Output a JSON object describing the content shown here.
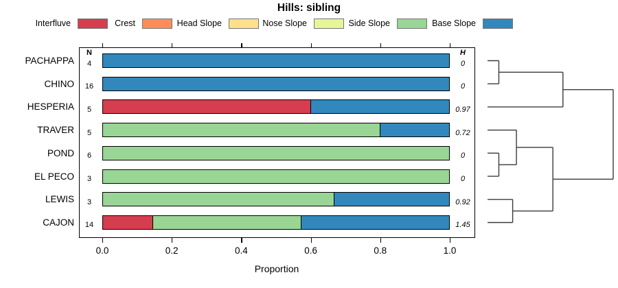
{
  "title": "Hills: sibling",
  "legend": {
    "items": [
      {
        "label": "Interfluve",
        "color": "#d53e4f"
      },
      {
        "label": "Crest",
        "color": "#fc8d59"
      },
      {
        "label": "Head Slope",
        "color": "#fee08b"
      },
      {
        "label": "Nose Slope",
        "color": "#e6f598"
      },
      {
        "label": "Side Slope",
        "color": "#99d594"
      },
      {
        "label": "Base Slope",
        "color": "#3288bd"
      }
    ]
  },
  "columns": {
    "n_header": "N",
    "h_header": "H"
  },
  "axis": {
    "xlabel": "Proportion",
    "tick_labels": [
      "0.0",
      "0.2",
      "0.4",
      "0.6",
      "0.8",
      "1.0"
    ]
  },
  "chart_data": {
    "type": "bar",
    "subtype": "horizontal-stacked-proportion-with-dendrogram",
    "title": "Hills: sibling",
    "xlabel": "Proportion",
    "xlim": [
      0,
      1
    ],
    "x_ticks": [
      0.0,
      0.2,
      0.4,
      0.6,
      0.8,
      1.0
    ],
    "classes": [
      "Interfluve",
      "Crest",
      "Head Slope",
      "Nose Slope",
      "Side Slope",
      "Base Slope"
    ],
    "class_colors": {
      "Interfluve": "#d53e4f",
      "Crest": "#fc8d59",
      "Head Slope": "#fee08b",
      "Nose Slope": "#e6f598",
      "Side Slope": "#99d594",
      "Base Slope": "#3288bd"
    },
    "categories": [
      "PACHAPPA",
      "CHINO",
      "HESPERIA",
      "TRAVER",
      "POND",
      "EL PECO",
      "LEWIS",
      "CAJON"
    ],
    "n_values": [
      4,
      16,
      5,
      5,
      6,
      3,
      3,
      14
    ],
    "h_values": [
      "0",
      "0",
      "0.97",
      "0.72",
      "0",
      "0",
      "0.92",
      "1.45"
    ],
    "rows": [
      {
        "name": "PACHAPPA",
        "n": "4",
        "h": "0",
        "segments": [
          {
            "class": "Base Slope",
            "value": 1.0
          }
        ]
      },
      {
        "name": "CHINO",
        "n": "16",
        "h": "0",
        "segments": [
          {
            "class": "Base Slope",
            "value": 1.0
          }
        ]
      },
      {
        "name": "HESPERIA",
        "n": "5",
        "h": "0.97",
        "segments": [
          {
            "class": "Interfluve",
            "value": 0.6
          },
          {
            "class": "Base Slope",
            "value": 0.4
          }
        ]
      },
      {
        "name": "TRAVER",
        "n": "5",
        "h": "0.72",
        "segments": [
          {
            "class": "Side Slope",
            "value": 0.8
          },
          {
            "class": "Base Slope",
            "value": 0.2
          }
        ]
      },
      {
        "name": "POND",
        "n": "6",
        "h": "0",
        "segments": [
          {
            "class": "Side Slope",
            "value": 1.0
          }
        ]
      },
      {
        "name": "EL PECO",
        "n": "3",
        "h": "0",
        "segments": [
          {
            "class": "Side Slope",
            "value": 1.0
          }
        ]
      },
      {
        "name": "LEWIS",
        "n": "3",
        "h": "0.92",
        "segments": [
          {
            "class": "Side Slope",
            "value": 0.667
          },
          {
            "class": "Base Slope",
            "value": 0.333
          }
        ]
      },
      {
        "name": "CAJON",
        "n": "14",
        "h": "1.45",
        "segments": [
          {
            "class": "Interfluve",
            "value": 0.143
          },
          {
            "class": "Side Slope",
            "value": 0.429
          },
          {
            "class": "Base Slope",
            "value": 0.428
          }
        ]
      }
    ],
    "dendrogram": {
      "d": 1.0,
      "children": [
        {
          "d": 0.6,
          "children": [
            {
              "d": 0.09,
              "children": [
                "PACHAPPA",
                "CHINO"
              ]
            },
            "HESPERIA"
          ]
        },
        {
          "d": 0.52,
          "children": [
            {
              "d": 0.23,
              "children": [
                "TRAVER",
                {
                  "d": 0.09,
                  "children": [
                    "POND",
                    "EL PECO"
                  ]
                }
              ]
            },
            {
              "d": 0.2,
              "children": [
                "LEWIS",
                "CAJON"
              ]
            }
          ]
        }
      ]
    }
  }
}
